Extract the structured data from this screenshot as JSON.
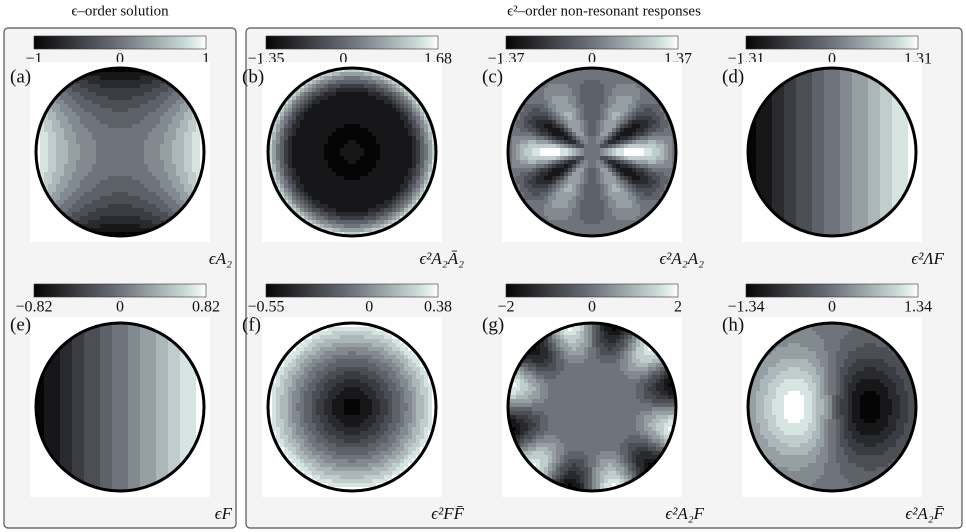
{
  "headers": [
    "ϵ–order solution",
    "ϵ²–order non-resonant responses"
  ],
  "panels": [
    {
      "label": "(a)",
      "field": "ϵA₂",
      "ticks": [
        "−1",
        "0",
        "1"
      ]
    },
    {
      "label": "(b)",
      "field": "ϵ²A₂Ā₂",
      "ticks": [
        "−1.35",
        "0",
        "1.68"
      ]
    },
    {
      "label": "(c)",
      "field": "ϵ²A₂A₂",
      "ticks": [
        "−1.37",
        "0",
        "1.37"
      ]
    },
    {
      "label": "(d)",
      "field": "ϵ²ΛF",
      "ticks": [
        "−1.31",
        "0",
        "1.31"
      ]
    },
    {
      "label": "(e)",
      "field": "ϵF",
      "ticks": [
        "−0.82",
        "0",
        "0.82"
      ]
    },
    {
      "label": "(f)",
      "field": "ϵ²FF̄",
      "ticks": [
        "−0.55",
        "0",
        "0.38"
      ]
    },
    {
      "label": "(g)",
      "field": "ϵ²A₂F",
      "ticks": [
        "−2",
        "0",
        "2"
      ]
    },
    {
      "label": "(h)",
      "field": "ϵ²A₂F̄",
      "ticks": [
        "−1.34",
        "0",
        "1.34"
      ]
    }
  ]
}
